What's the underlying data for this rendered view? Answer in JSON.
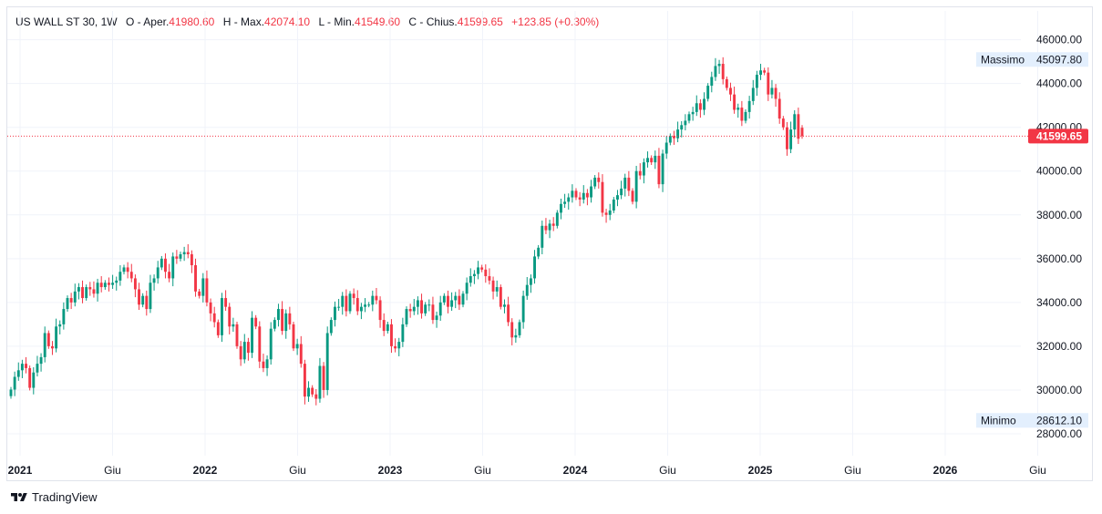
{
  "legend": {
    "symbol": "US WALL ST 30, 1W",
    "open_label": "O - Aper.",
    "open_value": "41980.60",
    "high_label": "H - Max.",
    "high_value": "42074.10",
    "low_label": "L - Min.",
    "low_value": "41549.60",
    "close_label": "C - Chius.",
    "close_value": "41599.65",
    "change": "+123.85 (+0.30%)"
  },
  "brand": "TradingView",
  "colors": {
    "up": "#089981",
    "down": "#f23645",
    "grid": "#f0f3fa",
    "text": "#131722",
    "badge": "#e3effd"
  },
  "chart_data": {
    "type": "candlestick",
    "ylim": [
      27000,
      46900
    ],
    "y_ticks": [
      "28000.00",
      "30000.00",
      "32000.00",
      "34000.00",
      "36000.00",
      "38000.00",
      "40000.00",
      "42000.00",
      "44000.00",
      "46000.00"
    ],
    "x_ticks": [
      {
        "label": "2021",
        "bold": true
      },
      {
        "label": "Giu",
        "bold": false
      },
      {
        "label": "2022",
        "bold": true
      },
      {
        "label": "Giu",
        "bold": false
      },
      {
        "label": "2023",
        "bold": true
      },
      {
        "label": "Giu",
        "bold": false
      },
      {
        "label": "2024",
        "bold": true
      },
      {
        "label": "Giu",
        "bold": false
      },
      {
        "label": "2025",
        "bold": true
      },
      {
        "label": "Giu",
        "bold": false
      },
      {
        "label": "2026",
        "bold": true
      },
      {
        "label": "Giu",
        "bold": false
      }
    ],
    "last_price": "41599.65",
    "high_marker": {
      "label": "Massimo",
      "value": "45097.80"
    },
    "low_marker": {
      "label": "Minimo",
      "value": "28612.10"
    },
    "closes": [
      30020,
      30600,
      30900,
      31200,
      31000,
      30100,
      30800,
      31200,
      31500,
      32600,
      32000,
      31900,
      32900,
      33000,
      33700,
      34200,
      34000,
      34500,
      34700,
      34200,
      34700,
      34600,
      34400,
      34900,
      34700,
      34900,
      34800,
      34900,
      35000,
      35400,
      35600,
      35400,
      35100,
      34600,
      33900,
      34300,
      33700,
      34900,
      35100,
      35600,
      36000,
      35400,
      35100,
      36100,
      36000,
      36200,
      36300,
      36200,
      35700,
      34500,
      34300,
      35100,
      34000,
      33500,
      33100,
      32500,
      34200,
      33800,
      32900,
      33000,
      32000,
      31400,
      32200,
      31700,
      33300,
      32900,
      31300,
      31000,
      31400,
      32800,
      33200,
      33700,
      32700,
      33500,
      33000,
      31900,
      32100,
      31200,
      29700,
      30100,
      29800,
      29600,
      31100,
      30000,
      32600,
      33200,
      33800,
      33800,
      34300,
      33600,
      34400,
      34200,
      33600,
      33800,
      33900,
      33900,
      34300,
      34100,
      33200,
      32700,
      33000,
      32000,
      31900,
      32200,
      33000,
      33700,
      33600,
      33800,
      34100,
      33500,
      33900,
      33900,
      33200,
      33400,
      34000,
      34300,
      33800,
      34100,
      34300,
      33900,
      34400,
      34900,
      35200,
      35300,
      35600,
      35500,
      35200,
      35000,
      34500,
      34700,
      33800,
      33900,
      33100,
      32400,
      32500,
      33100,
      34300,
      34800,
      35100,
      36100,
      36500,
      37500,
      37300,
      37600,
      37500,
      38100,
      38500,
      38600,
      38800,
      39100,
      38800,
      38700,
      39000,
      38800,
      39300,
      39700,
      39500,
      38100,
      38000,
      38200,
      38700,
      38900,
      39200,
      39700,
      39100,
      38600,
      40000,
      39800,
      40400,
      40600,
      40400,
      40700,
      39400,
      40800,
      41300,
      41600,
      41500,
      41900,
      42100,
      42300,
      42600,
      42700,
      43100,
      42800,
      43300,
      43900,
      44300,
      44800,
      44900,
      44200,
      43800,
      43500,
      42800,
      42900,
      42300,
      42700,
      43200,
      43800,
      44400,
      44600,
      44500,
      43500,
      43800,
      43300,
      42400,
      42000,
      41000,
      41900,
      42600,
      41480,
      41599.65
    ]
  }
}
